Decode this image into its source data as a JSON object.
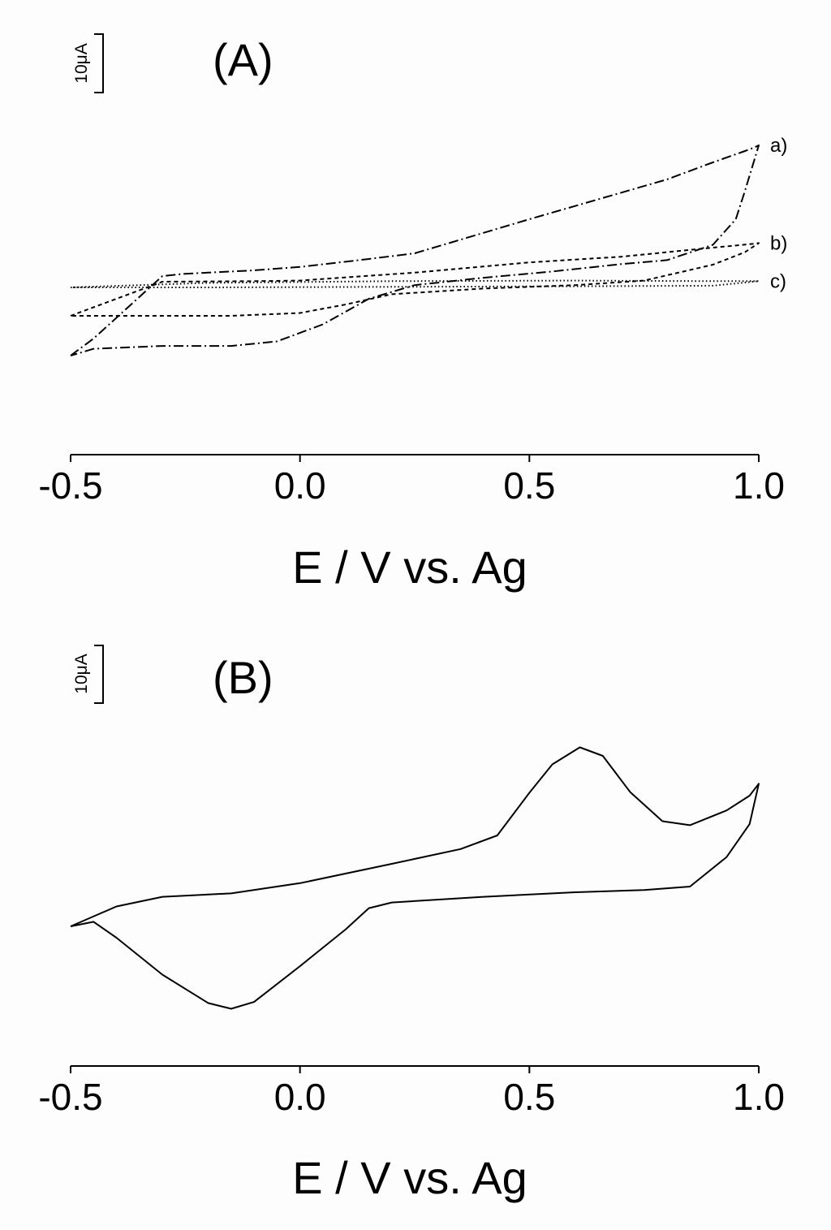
{
  "chart_data": [
    {
      "type": "line",
      "panel_label": "(A)",
      "xlabel": "E / V vs. Ag",
      "xlim": [
        -0.5,
        1.0
      ],
      "xticks": [
        "-0.5",
        "0.0",
        "0.5",
        "1.0"
      ],
      "scale_bar": "10μA",
      "series": [
        {
          "name": "a)",
          "style": "dashdot",
          "x": [
            -0.5,
            -0.45,
            -0.3,
            -0.25,
            -0.1,
            0.0,
            0.15,
            0.25,
            0.5,
            0.8,
            0.9,
            0.97,
            0.99,
            1.0,
            0.97,
            0.95,
            0.9,
            0.8,
            0.7,
            0.55,
            0.4,
            0.25,
            0.15,
            0.05,
            -0.05,
            -0.15,
            -0.3,
            -0.45,
            -0.5
          ],
          "y": [
            -19,
            -16,
            -5,
            -4.6,
            -4,
            -3.4,
            -2,
            -1,
            5,
            12,
            15,
            17,
            17.6,
            18,
            10,
            5,
            0.5,
            -2.2,
            -2.9,
            -4.2,
            -5.3,
            -6.6,
            -9,
            -13.5,
            -16.5,
            -17.3,
            -17.3,
            -17.8,
            -19
          ]
        },
        {
          "name": "b)",
          "style": "dashed",
          "x": [
            -0.5,
            -0.4,
            -0.3,
            -0.1,
            0.0,
            0.25,
            0.5,
            0.7,
            0.9,
            0.98,
            1.0,
            0.97,
            0.9,
            0.75,
            0.6,
            0.4,
            0.2,
            0.1,
            0.0,
            -0.15,
            -0.35,
            -0.5
          ],
          "y": [
            -12,
            -9,
            -6,
            -5.9,
            -5.8,
            -4.4,
            -2.6,
            -1.6,
            0,
            0.6,
            0.8,
            -0.8,
            -3,
            -5.8,
            -6.6,
            -7.2,
            -8.2,
            -10,
            -11.5,
            -12,
            -12,
            -12
          ]
        },
        {
          "name": "c)",
          "style": "dotted",
          "x": [
            -0.5,
            -0.2,
            0.2,
            0.6,
            0.9,
            1.0,
            0.9,
            0.6,
            0.2,
            -0.2,
            -0.5
          ],
          "y": [
            -7,
            -6.2,
            -5.9,
            -5.8,
            -5.9,
            -5.9,
            -6.7,
            -6.8,
            -6.9,
            -7,
            -7
          ]
        }
      ]
    },
    {
      "type": "line",
      "panel_label": "(B)",
      "xlabel": "E / V vs. Ag",
      "xlim": [
        -0.5,
        1.0
      ],
      "xticks": [
        "-0.5",
        "0.0",
        "0.5",
        "1.0"
      ],
      "scale_bar": "10μA",
      "series": [
        {
          "style": "solid",
          "x": [
            -0.5,
            -0.4,
            -0.3,
            -0.15,
            0.0,
            0.2,
            0.35,
            0.43,
            0.5,
            0.55,
            0.61,
            0.66,
            0.72,
            0.79,
            0.85,
            0.93,
            0.98,
            1.0,
            0.98,
            0.93,
            0.85,
            0.75,
            0.6,
            0.4,
            0.2,
            0.15,
            0.1,
            0.0,
            -0.1,
            -0.15,
            -0.2,
            -0.3,
            -0.4,
            -0.45,
            -0.5
          ],
          "y": [
            -8,
            -4.5,
            -2.8,
            -2.2,
            -0.4,
            3,
            5.6,
            8,
            15.5,
            20.5,
            23.5,
            22,
            15.6,
            10.5,
            9.8,
            12.4,
            15,
            17.1,
            10,
            4.2,
            -1,
            -1.6,
            -2,
            -2.8,
            -3.8,
            -4.8,
            -8.5,
            -15,
            -21.3,
            -22.5,
            -21.5,
            -16.5,
            -10,
            -7.2,
            -8
          ]
        }
      ]
    }
  ]
}
